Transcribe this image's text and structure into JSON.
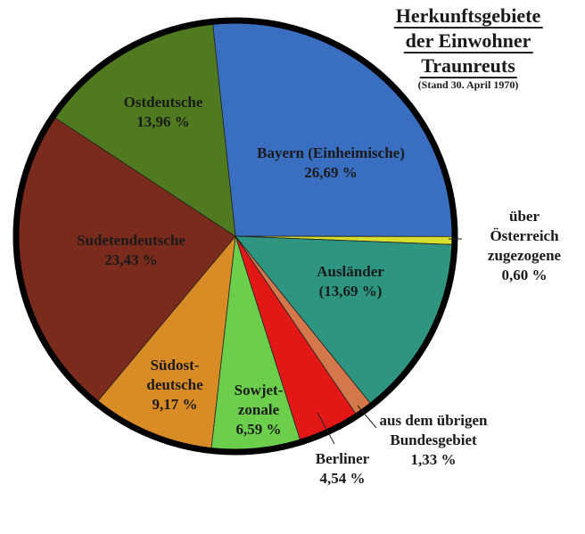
{
  "chart_data": {
    "type": "pie",
    "title": [
      "Herkunftsgebiete",
      "der Einwohner",
      "Traunreuts"
    ],
    "subtitle": "(Stand 30. April 1970)",
    "start": "top, clockwise",
    "slices": [
      {
        "label": [
          "Bayern (Einheimische)"
        ],
        "value_label": "26,69 %",
        "value": 26.69,
        "color": "#3a6ec0"
      },
      {
        "label": [
          "über",
          "Österreich",
          "zugezogene"
        ],
        "value_label": "0,60 %",
        "value": 0.6,
        "color": "#d6df2e"
      },
      {
        "label": [
          "Ausländer"
        ],
        "value_label": "(13,69 %)",
        "value": 13.69,
        "color": "#2e9580"
      },
      {
        "label": [
          "aus dem übrigen",
          "Bundesgebiet"
        ],
        "value_label": "1,33 %",
        "value": 1.33,
        "color": "#d4784c"
      },
      {
        "label": [
          "Berliner"
        ],
        "value_label": "4,54 %",
        "value": 4.54,
        "color": "#e41717"
      },
      {
        "label": [
          "Sowjet-",
          "zonale"
        ],
        "value_label": "6,59 %",
        "value": 6.59,
        "color": "#6ccf4b"
      },
      {
        "label": [
          "Südost-",
          "deutsche"
        ],
        "value_label": "9,17 %",
        "value": 9.17,
        "color": "#d98c25"
      },
      {
        "label": [
          "Sudetendeutsche"
        ],
        "value_label": "23,43 %",
        "value": 23.43,
        "color": "#7a2b1c"
      },
      {
        "label": [
          "Ostdeutsche"
        ],
        "value_label": "13,96 %",
        "value": 13.96,
        "color": "#4f7a1f"
      }
    ]
  }
}
